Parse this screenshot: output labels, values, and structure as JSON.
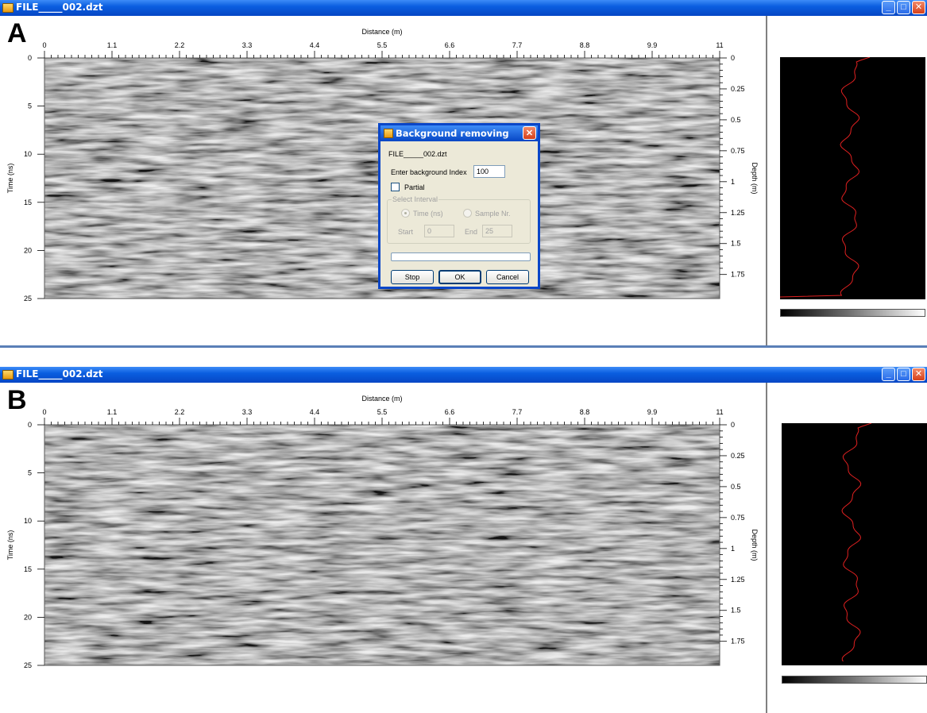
{
  "windows": [
    {
      "id": "A",
      "panel_label": "A",
      "title": "FILE_____002.dzt"
    },
    {
      "id": "B",
      "panel_label": "B",
      "title": "FILE_____002.dzt"
    }
  ],
  "axes": {
    "top_label": "Distance (m)",
    "left_label": "Time (ns)",
    "right_label": "Depth (m)",
    "distance_ticks": [
      "0",
      "1.1",
      "2.2",
      "3.3",
      "4.4",
      "5.5",
      "6.6",
      "7.7",
      "8.8",
      "9.9",
      "11"
    ],
    "time_ticks": [
      "0",
      "5",
      "10",
      "15",
      "20",
      "25"
    ],
    "depth_ticks": [
      "0",
      "0.25",
      "0.5",
      "0.75",
      "1",
      "1.25",
      "1.5",
      "1.75"
    ]
  },
  "dialog": {
    "title": "Background removing",
    "filename": "FILE_____002.dzt",
    "index_label": "Enter background Index",
    "index_value": "100",
    "partial_label": "Partial",
    "partial_checked": false,
    "interval_group": "Select Interval",
    "radio_time": "Time (ns)",
    "radio_sample": "Sample Nr.",
    "start_label": "Start",
    "start_value": "0",
    "end_label": "End",
    "end_value": "25",
    "stop_button": "Stop",
    "ok_button": "OK",
    "cancel_button": "Cancel"
  },
  "colors": {
    "titlebar": "#0a5ee0",
    "trace": "#e02020",
    "dialog_border": "#0a46c8"
  }
}
